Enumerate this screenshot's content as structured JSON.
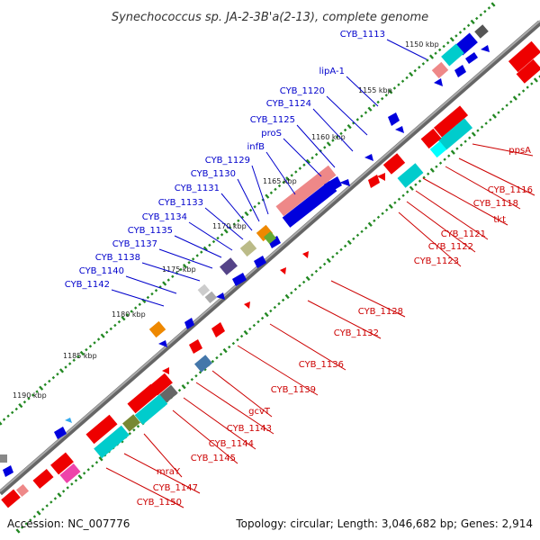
{
  "title": "Synechococcus sp. JA-2-3B'a(2-13), complete genome",
  "accession": "Accession: NC_007776",
  "topology": "Topology: circular; Length: 3,046,682 bp; Genes: 2,914",
  "colors": {
    "forward_label": "#0000cc",
    "reverse_label": "#cc0000",
    "forward_gene": "#0000dd",
    "reverse_gene": "#ee0000",
    "backbone": "#888888",
    "tick": "#228822"
  },
  "kbp_ticks": [
    {
      "label": "1150 kbp",
      "ring": "outer"
    },
    {
      "label": "1155 kbp",
      "ring": "outer"
    },
    {
      "label": "1160 kbp",
      "ring": "outer"
    },
    {
      "label": "1165 kbp",
      "ring": "outer"
    },
    {
      "label": "1170 kbp",
      "ring": "outer"
    },
    {
      "label": "1175 kbp",
      "ring": "outer"
    },
    {
      "label": "1180 kbp",
      "ring": "outer"
    },
    {
      "label": "1185 kbp",
      "ring": "outer"
    },
    {
      "label": "1190 kbp",
      "ring": "outer"
    }
  ],
  "forward_genes": [
    {
      "label": "CYB_1113"
    },
    {
      "label": "lipA-1"
    },
    {
      "label": "CYB_1120"
    },
    {
      "label": "CYB_1124"
    },
    {
      "label": "CYB_1125"
    },
    {
      "label": "proS"
    },
    {
      "label": "infB"
    },
    {
      "label": "CYB_1129"
    },
    {
      "label": "CYB_1130"
    },
    {
      "label": "CYB_1131"
    },
    {
      "label": "CYB_1133"
    },
    {
      "label": "CYB_1134"
    },
    {
      "label": "CYB_1135"
    },
    {
      "label": "CYB_1137"
    },
    {
      "label": "CYB_1138"
    },
    {
      "label": "CYB_1140"
    },
    {
      "label": "CYB_1142"
    }
  ],
  "reverse_genes": [
    {
      "label": "ppsA"
    },
    {
      "label": "CYB_1116"
    },
    {
      "label": "CYB_1118"
    },
    {
      "label": "tkt"
    },
    {
      "label": "CYB_1121"
    },
    {
      "label": "CYB_1122"
    },
    {
      "label": "CYB_1123"
    },
    {
      "label": "CYB_1128"
    },
    {
      "label": "CYB_1132"
    },
    {
      "label": "CYB_1136"
    },
    {
      "label": "CYB_1139"
    },
    {
      "label": "gcvT"
    },
    {
      "label": "CYB_1143"
    },
    {
      "label": "CYB_1144"
    },
    {
      "label": "CYB_1145"
    },
    {
      "label": "mraY"
    },
    {
      "label": "CYB_1147"
    },
    {
      "label": "CYB_1150"
    }
  ]
}
